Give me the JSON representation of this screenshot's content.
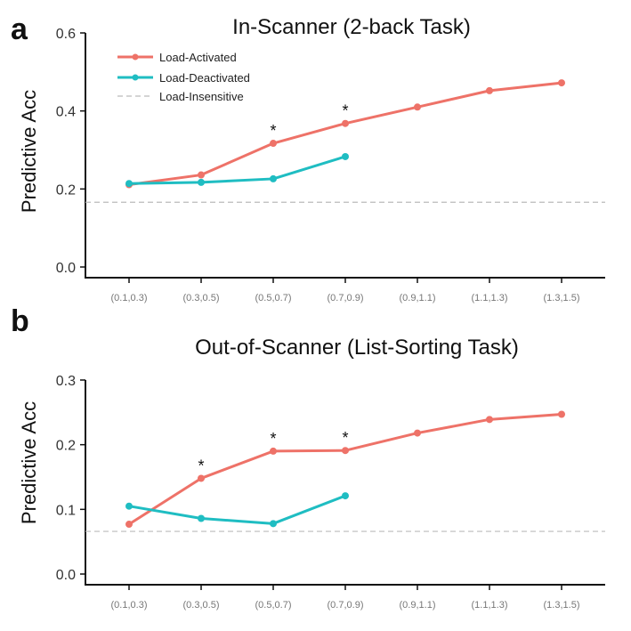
{
  "chart_data": [
    {
      "panel_label": "a",
      "type": "line",
      "title": "In-Scanner (2-back Task)",
      "ylabel": "Predictive Acc",
      "xlabel": "",
      "ylim": [
        0.0,
        0.6
      ],
      "yticks": [
        "0.0",
        "0.2",
        "0.4",
        "0.6"
      ],
      "categories": [
        "(0.1,0.3)",
        "(0.3,0.5)",
        "(0.5,0.7)",
        "(0.7,0.9)",
        "(0.9,1.1)",
        "(1.1,1.3)",
        "(1.3,1.5)"
      ],
      "series": [
        {
          "name": "Load-Activated",
          "color": "#EE7268",
          "values": [
            0.211,
            0.236,
            0.317,
            0.368,
            0.41,
            0.452,
            0.472
          ]
        },
        {
          "name": "Load-Deactivated",
          "color": "#1FBDC2",
          "values": [
            0.214,
            0.217,
            0.226,
            0.283,
            null,
            null,
            null
          ]
        }
      ],
      "reference_line": {
        "name": "Load-Insensitive",
        "value": 0.166,
        "color": "#BBBBBB",
        "style": "dashed"
      },
      "significance": {
        "marker": "*",
        "categories": [
          "(0.5,0.7)",
          "(0.7,0.9)"
        ]
      },
      "legend": {
        "placement": "top-left",
        "show": true
      },
      "grid": false
    },
    {
      "panel_label": "b",
      "type": "line",
      "title": "Out-of-Scanner (List-Sorting Task)",
      "ylabel": "Predictive Acc",
      "xlabel": "",
      "ylim": [
        0.0,
        0.3
      ],
      "yticks": [
        "0.0",
        "0.1",
        "0.2",
        "0.3"
      ],
      "categories": [
        "(0.1,0.3)",
        "(0.3,0.5)",
        "(0.5,0.7)",
        "(0.7,0.9)",
        "(0.9,1.1)",
        "(1.1,1.3)",
        "(1.3,1.5)"
      ],
      "series": [
        {
          "name": "Load-Activated",
          "color": "#EE7268",
          "values": [
            0.077,
            0.148,
            0.19,
            0.191,
            0.218,
            0.239,
            0.247
          ]
        },
        {
          "name": "Load-Deactivated",
          "color": "#1FBDC2",
          "values": [
            0.105,
            0.086,
            0.078,
            0.121,
            null,
            null,
            null
          ]
        }
      ],
      "reference_line": {
        "name": "Load-Insensitive",
        "value": 0.066,
        "color": "#BBBBBB",
        "style": "dashed"
      },
      "significance": {
        "marker": "*",
        "categories": [
          "(0.3,0.5)",
          "(0.5,0.7)",
          "(0.7,0.9)"
        ]
      },
      "legend": {
        "show": false
      },
      "grid": false
    }
  ]
}
